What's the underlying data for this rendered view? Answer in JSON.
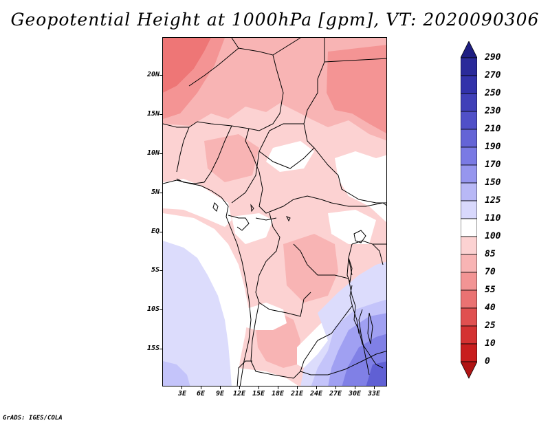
{
  "title": "Geopotential Height at 1000hPa [gpm], VT: 2020090306",
  "credit": "GrADS: IGES/COLA",
  "map": {
    "lat_labels": [
      "20N",
      "15N",
      "10N",
      "5N",
      "EQ",
      "5S",
      "10S",
      "15S"
    ],
    "lon_labels": [
      "3E",
      "6E",
      "9E",
      "12E",
      "15E",
      "18E",
      "21E",
      "24E",
      "27E",
      "30E",
      "33E"
    ],
    "colors": {
      "pale_red": "#fcd2d2",
      "light_red": "#f8b4b4",
      "mid_red": "#f49494",
      "strong_red": "#ee7676",
      "white": "#ffffff",
      "pale_blue": "#dcdcfc",
      "light_blue": "#c4c4fa",
      "mid_blue": "#a0a0f2",
      "blue": "#8080e6",
      "dark_blue": "#6060d4",
      "border": "#000000"
    }
  },
  "colorbar": {
    "labels": [
      "290",
      "270",
      "250",
      "230",
      "210",
      "190",
      "170",
      "150",
      "125",
      "110",
      "100",
      "85",
      "70",
      "55",
      "40",
      "25",
      "10",
      "0"
    ],
    "colors": [
      "#1e1e82",
      "#2a2a9a",
      "#3232aa",
      "#4040b8",
      "#5050c8",
      "#6464d6",
      "#7a7ae4",
      "#9696ee",
      "#b8b8f6",
      "#d8d8fc",
      "#ffffff",
      "#fcd2d2",
      "#f8b4b4",
      "#f29494",
      "#ea7272",
      "#e05050",
      "#d43232",
      "#c81e1e",
      "#b01414"
    ],
    "top_color": "#1e1e82",
    "bottom_color": "#b01414"
  }
}
